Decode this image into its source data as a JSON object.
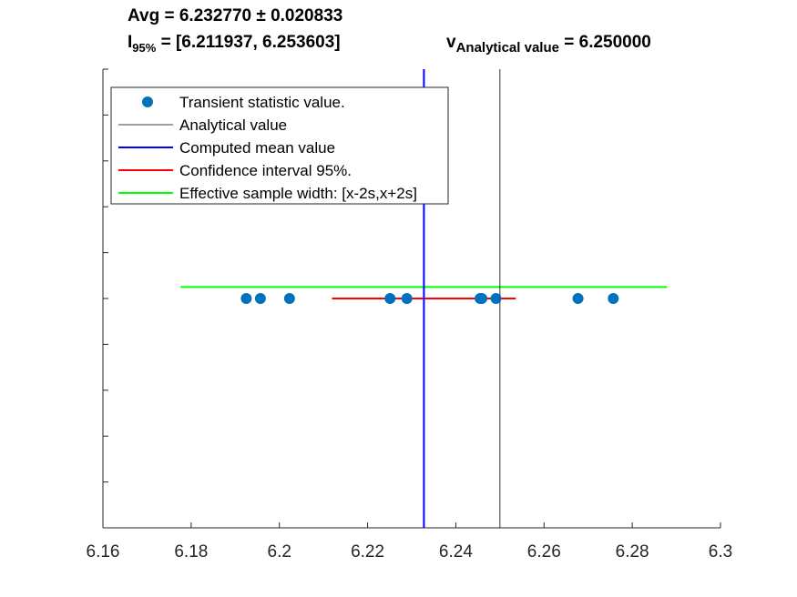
{
  "title": {
    "avg_line": "Avg = 6.232770 ± 0.020833",
    "ci_symbol": "I",
    "ci_subscript": "95%",
    "ci_value": " = [6.211937, 6.253603]",
    "analytical_symbol": "v",
    "analytical_subscript": "Analytical value",
    "analytical_value": " = 6.250000"
  },
  "colors": {
    "points": "#0072BD",
    "analytical": "#000000",
    "mean": "#0000FF",
    "ci": "#FF0000",
    "sample_width": "#00FF00",
    "axis": "#262626"
  },
  "chart_data": {
    "type": "scatter",
    "xlim": [
      6.16,
      6.3
    ],
    "ylim": [
      0,
      1
    ],
    "x_ticks": [
      "6.16",
      "6.18",
      "6.2",
      "6.22",
      "6.24",
      "6.26",
      "6.28",
      "6.3"
    ],
    "y_tick_values": [
      0.1,
      0.2,
      0.3,
      0.4,
      0.5,
      0.6,
      0.7,
      0.8,
      0.9,
      1.0
    ],
    "grid": false,
    "legend_position": "top-left",
    "points": {
      "name": "Transient statistic value.",
      "x": [
        6.1925,
        6.1957,
        6.2023,
        6.2251,
        6.2289,
        6.2455,
        6.2459,
        6.2491,
        6.2677,
        6.2757
      ],
      "y": 0.5
    },
    "analytical": {
      "name": "Analytical value",
      "x": 6.25
    },
    "mean": {
      "name": "Computed mean value",
      "x": 6.23277
    },
    "confidence_interval": {
      "name": "Confidence interval 95%.",
      "x": [
        6.211937,
        6.253603
      ],
      "y": 0.5
    },
    "sample_width": {
      "name": "Effective sample width: [x-2s,x+2s]",
      "x": [
        6.1776,
        6.2879
      ],
      "y": 0.525
    }
  }
}
